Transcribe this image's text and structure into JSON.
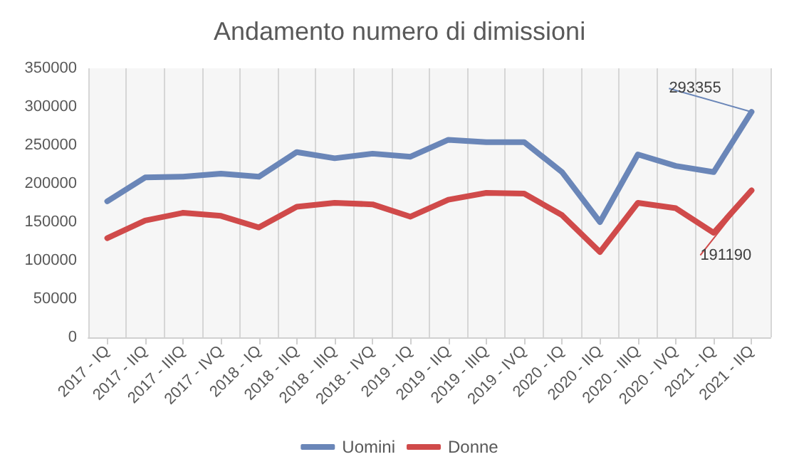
{
  "chart_data": {
    "type": "line",
    "title": "Andamento numero di dimissioni",
    "categories": [
      "2017 - IQ",
      "2017 - IIQ",
      "2017 - IIIQ",
      "2017 - IVQ",
      "2018 - IQ",
      "2018 - IIQ",
      "2018 - IIIQ",
      "2018 - IVQ",
      "2019 - IQ",
      "2019 - IIQ",
      "2019 - IIIQ",
      "2019 - IVQ",
      "2020 - IQ",
      "2020 - IIQ",
      "2020 - IIIQ",
      "2020 - IVQ",
      "2021 - IQ",
      "2021 - IIQ"
    ],
    "series": [
      {
        "name": "Uomini",
        "color": "#6a86b8",
        "values": [
          177000,
          208000,
          209000,
          213000,
          209000,
          241000,
          233000,
          239000,
          235000,
          257000,
          254000,
          254000,
          215000,
          150000,
          238000,
          223000,
          215000,
          293355
        ],
        "value_labels": [
          null,
          null,
          null,
          null,
          null,
          null,
          null,
          null,
          null,
          null,
          null,
          null,
          null,
          null,
          null,
          null,
          null,
          "293355"
        ]
      },
      {
        "name": "Donne",
        "color": "#d04a4a",
        "values": [
          129000,
          152000,
          162000,
          158000,
          143000,
          170000,
          175000,
          173000,
          157000,
          179000,
          188000,
          187000,
          159000,
          111000,
          175000,
          168000,
          136000,
          191190
        ],
        "value_labels": [
          null,
          null,
          null,
          null,
          null,
          null,
          null,
          null,
          null,
          null,
          null,
          null,
          null,
          null,
          null,
          null,
          null,
          "191190"
        ]
      }
    ],
    "ylim": [
      0,
      350000
    ],
    "yticks": [
      0,
      50000,
      100000,
      150000,
      200000,
      250000,
      300000,
      350000
    ],
    "grid": "x",
    "legend": "bottom",
    "marker": "none",
    "line_style": "solid"
  }
}
